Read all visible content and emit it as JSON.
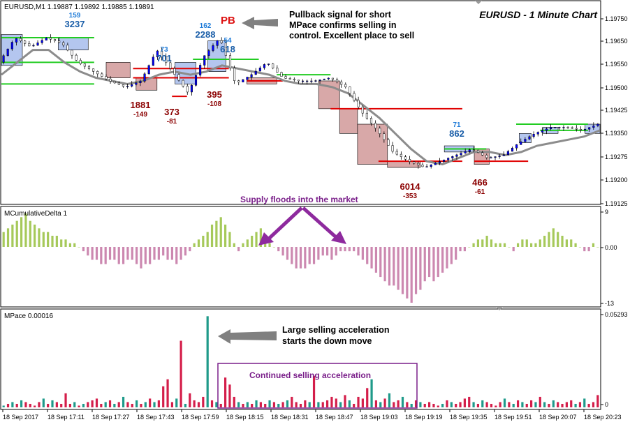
{
  "main": {
    "symbol_header": "EURUSD,M1  1.19887 1.19892 1.19885 1.19891",
    "chart_title": "EURUSD - 1 Minute Chart"
  },
  "annotations": {
    "pb_label": "PB",
    "pullback_note": [
      "Pullback signal for short",
      "MPace confirms selling in",
      "control. Excellent place to sell"
    ],
    "supply_note": "Supply floods into the market",
    "acceleration_note": [
      "Large selling acceleration",
      "starts the down move"
    ],
    "continued_note": "Continued selling acceleration"
  },
  "swing_labels": [
    {
      "top": "159",
      "bottom": "3237",
      "kind": "up"
    },
    {
      "top": "73",
      "bottom": "701",
      "kind": "up"
    },
    {
      "top": "162",
      "bottom": "2288",
      "kind": "up"
    },
    {
      "top": "54",
      "bottom": "618",
      "kind": "up"
    },
    {
      "top": "71",
      "bottom": "862",
      "kind": "up"
    },
    {
      "top": "1881",
      "bottom": "-149",
      "kind": "down"
    },
    {
      "top": "373",
      "bottom": "-81",
      "kind": "down"
    },
    {
      "top": "395",
      "bottom": "-108",
      "kind": "down"
    },
    {
      "top": "6014",
      "bottom": "-353",
      "kind": "down"
    },
    {
      "top": "466",
      "bottom": "-61",
      "kind": "down"
    }
  ],
  "indicators": {
    "delta_title": "MCumulativeDelta 1",
    "pace_title": "MPace 0.00016"
  },
  "colors": {
    "up_candle": "#0000ff",
    "box_up_fill": "#b4c6ef",
    "box_down_fill": "#d8a8a8",
    "level_red": "#e00000",
    "level_green": "#22cc22",
    "ma_gray": "#8c8c8c",
    "delta_pos": "#a6c95a",
    "delta_neg": "#cc88b0",
    "pace_red": "#d41e4a",
    "pace_teal": "#1f9a8a",
    "up_label": "#1a5ea8",
    "down_label": "#8b0000",
    "accent_purple": "#7a1f8a"
  },
  "chart_data": [
    {
      "type": "candlestick",
      "title": "EURUSD - 1 Minute Chart",
      "series_name": "EURUSD,M1",
      "ylim": [
        1.19125,
        1.19775
      ],
      "y_ticks": [
        "1.19750",
        "1.19650",
        "1.19550",
        "1.19500",
        "1.19425",
        "1.19350",
        "1.19275",
        "1.19200",
        "1.19125"
      ],
      "x_ticks": [
        "18 Sep 2017",
        "18 Sep 17:11",
        "18 Sep 17:27",
        "18 Sep 17:43",
        "18 Sep 17:59",
        "18 Sep 18:15",
        "18 Sep 18:31",
        "18 Sep 18:47",
        "18 Sep 19:03",
        "18 Sep 19:19",
        "18 Sep 19:35",
        "18 Sep 19:51",
        "18 Sep 20:07",
        "18 Sep 20:23"
      ],
      "price_path": [
        1.1958,
        1.1966,
        1.1963,
        1.1966,
        1.1964,
        1.1958,
        1.1955,
        1.1952,
        1.195,
        1.1952,
        1.1962,
        1.1955,
        1.1948,
        1.196,
        1.1966,
        1.1951,
        1.1954,
        1.1958,
        1.1953,
        1.1952,
        1.1952,
        1.1953,
        1.195,
        1.1942,
        1.1936,
        1.1929,
        1.1926,
        1.1924,
        1.1926,
        1.1928,
        1.193,
        1.1927,
        1.1928,
        1.1932,
        1.1935,
        1.1937,
        1.1937,
        1.1936,
        1.1938
      ],
      "moving_average_path": [
        1.1954,
        1.1958,
        1.1962,
        1.1962,
        1.1958,
        1.1955,
        1.1953,
        1.1952,
        1.1951,
        1.1952,
        1.1954,
        1.1955,
        1.1954,
        1.1955,
        1.1957,
        1.1956,
        1.1955,
        1.1954,
        1.1952,
        1.1951,
        1.1951,
        1.195,
        1.1948,
        1.1944,
        1.194,
        1.1935,
        1.193,
        1.1926,
        1.1925,
        1.1927,
        1.1929,
        1.1929,
        1.1928,
        1.1929,
        1.1931,
        1.1932,
        1.1933,
        1.1934,
        1.1936
      ],
      "boxes": [
        {
          "from": 0.0,
          "to": 0.035,
          "lo": 1.1957,
          "hi": 1.1967,
          "dir": "up"
        },
        {
          "from": 0.095,
          "to": 0.145,
          "lo": 1.1962,
          "hi": 1.1966,
          "dir": "up"
        },
        {
          "from": 0.175,
          "to": 0.215,
          "lo": 1.1953,
          "hi": 1.1958,
          "dir": "down"
        },
        {
          "from": 0.225,
          "to": 0.26,
          "lo": 1.1949,
          "hi": 1.1953,
          "dir": "down"
        },
        {
          "from": 0.29,
          "to": 0.325,
          "lo": 1.1951,
          "hi": 1.1958,
          "dir": "up"
        },
        {
          "from": 0.345,
          "to": 0.375,
          "lo": 1.1955,
          "hi": 1.1965,
          "dir": "up"
        },
        {
          "from": 0.41,
          "to": 0.46,
          "lo": 1.1951,
          "hi": 1.1953,
          "dir": "down"
        },
        {
          "from": 0.53,
          "to": 0.565,
          "lo": 1.1943,
          "hi": 1.1952,
          "dir": "down"
        },
        {
          "from": 0.565,
          "to": 0.595,
          "lo": 1.1935,
          "hi": 1.1943,
          "dir": "down"
        },
        {
          "from": 0.595,
          "to": 0.645,
          "lo": 1.1925,
          "hi": 1.1938,
          "dir": "down"
        },
        {
          "from": 0.645,
          "to": 0.7,
          "lo": 1.1924,
          "hi": 1.1926,
          "dir": "down"
        },
        {
          "from": 0.74,
          "to": 0.79,
          "lo": 1.1929,
          "hi": 1.1931,
          "dir": "up"
        },
        {
          "from": 0.79,
          "to": 0.815,
          "lo": 1.1925,
          "hi": 1.193,
          "dir": "down"
        },
        {
          "from": 0.865,
          "to": 0.885,
          "lo": 1.1932,
          "hi": 1.1935,
          "dir": "up"
        },
        {
          "from": 0.905,
          "to": 0.93,
          "lo": 1.1935,
          "hi": 1.1937,
          "dir": "up"
        },
        {
          "from": 0.975,
          "to": 1.0,
          "lo": 1.1935,
          "hi": 1.1938,
          "dir": "up"
        }
      ],
      "levels": [
        {
          "from": 0.0,
          "to": 0.155,
          "y": 1.1966,
          "color": "green"
        },
        {
          "from": 0.0,
          "to": 0.155,
          "y": 1.1958,
          "color": "green"
        },
        {
          "from": 0.0,
          "to": 0.155,
          "y": 1.1951,
          "color": "green"
        },
        {
          "from": 0.22,
          "to": 0.38,
          "y": 1.1956,
          "color": "red"
        },
        {
          "from": 0.22,
          "to": 0.38,
          "y": 1.1953,
          "color": "red"
        },
        {
          "from": 0.285,
          "to": 0.31,
          "y": 1.1947,
          "color": "red"
        },
        {
          "from": 0.32,
          "to": 0.43,
          "y": 1.1959,
          "color": "green"
        },
        {
          "from": 0.41,
          "to": 0.47,
          "y": 1.1952,
          "color": "red"
        },
        {
          "from": 0.46,
          "to": 0.55,
          "y": 1.1954,
          "color": "green"
        },
        {
          "from": 0.55,
          "to": 0.77,
          "y": 1.1943,
          "color": "red"
        },
        {
          "from": 0.63,
          "to": 0.77,
          "y": 1.1926,
          "color": "red"
        },
        {
          "from": 0.74,
          "to": 0.81,
          "y": 1.193,
          "color": "green"
        },
        {
          "from": 0.79,
          "to": 0.88,
          "y": 1.1926,
          "color": "red"
        },
        {
          "from": 0.86,
          "to": 0.98,
          "y": 1.1938,
          "color": "green"
        },
        {
          "from": 0.9,
          "to": 0.98,
          "y": 1.1936,
          "color": "green"
        }
      ]
    },
    {
      "type": "bar",
      "title": "MCumulativeDelta 1",
      "ylim": [
        -13,
        9
      ],
      "y_ticks": [
        "9",
        "0.00",
        "-13"
      ],
      "values": [
        4,
        5,
        6,
        7,
        8,
        9,
        7,
        6,
        5,
        4,
        4,
        3,
        3,
        2,
        2,
        1,
        1,
        0,
        -1,
        -2,
        -3,
        -3,
        -4,
        -4,
        -3,
        -3,
        -4,
        -4,
        -3,
        -3,
        -4,
        -5,
        -4,
        -4,
        -3,
        -3,
        -2,
        -3,
        -3,
        -4,
        -3,
        -2,
        -1,
        1,
        2,
        3,
        4,
        6,
        7,
        8,
        6,
        4,
        1,
        -1,
        1,
        2,
        3,
        4,
        5,
        2,
        1,
        0,
        -1,
        -2,
        -3,
        -4,
        -5,
        -5,
        -5,
        -4,
        -4,
        -3,
        -2,
        -2,
        -3,
        -2,
        -1,
        -1,
        -1,
        -1,
        -2,
        -3,
        -4,
        -5,
        -6,
        -7,
        -8,
        -9,
        -9,
        -10,
        -11,
        -12,
        -13,
        -11,
        -10,
        -8,
        -7,
        -8,
        -7,
        -6,
        -5,
        -4,
        -3,
        -1,
        -1,
        0,
        1,
        2,
        2,
        3,
        2,
        1,
        1,
        1,
        0,
        -1,
        1,
        2,
        2,
        1,
        1,
        2,
        3,
        4,
        5,
        4,
        3,
        2,
        2,
        1,
        0,
        -1,
        -1,
        1,
        0
      ]
    },
    {
      "type": "bar",
      "title": "MPace 0.00016",
      "ylim": [
        0,
        0.05293
      ],
      "y_ticks": [
        "0.05293",
        "0"
      ],
      "values": [
        0.001,
        0.002,
        0.003,
        0.002,
        0.004,
        0.003,
        0.002,
        0.001,
        0.003,
        0.005,
        0.002,
        0.004,
        0.003,
        0.002,
        0.008,
        0.002,
        0.003,
        0.001,
        0.002,
        0.003,
        0.004,
        0.005,
        0.002,
        0.003,
        0.004,
        0.002,
        0.003,
        0.006,
        0.003,
        0.002,
        0.004,
        0.002,
        0.003,
        0.005,
        0.003,
        0.004,
        0.012,
        0.016,
        0.003,
        0.005,
        0.038,
        0.002,
        0.008,
        0.004,
        0.003,
        0.006,
        0.052,
        0.004,
        0.003,
        0.002,
        0.017,
        0.013,
        0.006,
        0.003,
        0.002,
        0.003,
        0.002,
        0.004,
        0.003,
        0.002,
        0.004,
        0.003,
        0.002,
        0.003,
        0.004,
        0.006,
        0.003,
        0.002,
        0.004,
        0.003,
        0.018,
        0.003,
        0.003,
        0.004,
        0.006,
        0.005,
        0.003,
        0.007,
        0.004,
        0.002,
        0.006,
        0.005,
        0.011,
        0.016,
        0.004,
        0.003,
        0.005,
        0.008,
        0.003,
        0.004,
        0.006,
        0.003,
        0.002,
        0.004,
        0.003,
        0.002,
        0.003,
        0.002,
        0.001,
        0.002,
        0.004,
        0.003,
        0.002,
        0.003,
        0.005,
        0.006,
        0.003,
        0.002,
        0.004,
        0.003,
        0.002,
        0.001,
        0.003,
        0.005,
        0.003,
        0.002,
        0.004,
        0.003,
        0.002,
        0.004,
        0.003,
        0.006,
        0.003,
        0.002,
        0.004,
        0.003,
        0.002,
        0.003,
        0.004,
        0.002,
        0.003,
        0.005,
        0.002,
        0.003,
        0.007
      ],
      "colors_by_index": "alternating red/teal per sign of delta"
    }
  ]
}
